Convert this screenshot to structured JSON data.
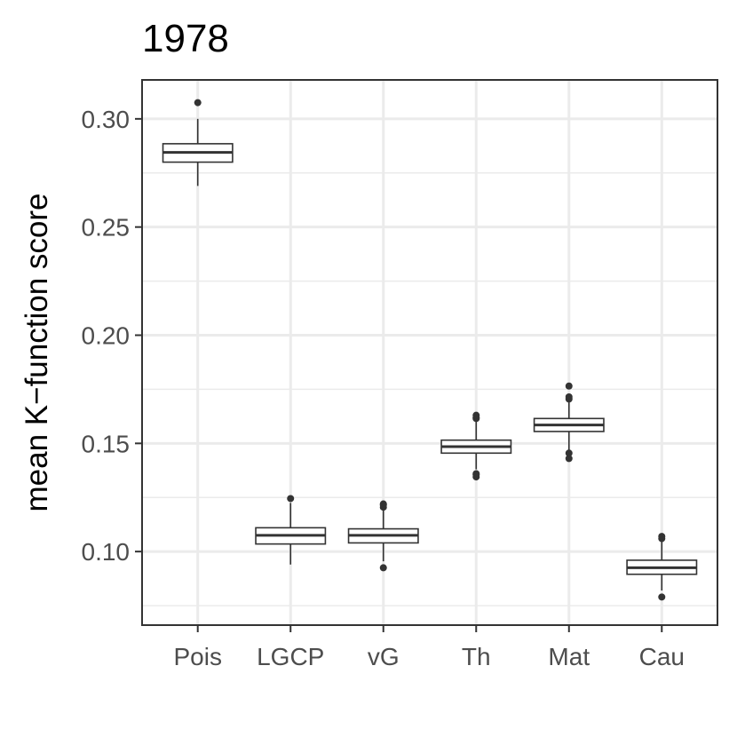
{
  "chart_data": {
    "type": "boxplot",
    "title": "1978",
    "ylabel": "mean K−function score",
    "xlabel": "",
    "ylim": [
      0.066,
      0.318
    ],
    "y_ticks": [
      0.1,
      0.15,
      0.2,
      0.25,
      0.3
    ],
    "y_tick_labels": [
      "0.10",
      "0.15",
      "0.20",
      "0.25",
      "0.30"
    ],
    "grid": true,
    "categories": [
      "Pois",
      "LGCP",
      "vG",
      "Th",
      "Mat",
      "Cau"
    ],
    "boxes": [
      {
        "category": "Pois",
        "whisker_low": 0.269,
        "q1": 0.28,
        "median": 0.2845,
        "q3": 0.2885,
        "whisker_high": 0.3,
        "outliers": [
          0.3075
        ]
      },
      {
        "category": "LGCP",
        "whisker_low": 0.094,
        "q1": 0.1035,
        "median": 0.1075,
        "q3": 0.111,
        "whisker_high": 0.1225,
        "outliers": [
          0.1245
        ]
      },
      {
        "category": "vG",
        "whisker_low": 0.0955,
        "q1": 0.104,
        "median": 0.1075,
        "q3": 0.1105,
        "whisker_high": 0.1195,
        "outliers": [
          0.0925,
          0.1205,
          0.1215,
          0.122
        ]
      },
      {
        "category": "Th",
        "whisker_low": 0.138,
        "q1": 0.1455,
        "median": 0.1485,
        "q3": 0.1515,
        "whisker_high": 0.16,
        "outliers": [
          0.1345,
          0.1355,
          0.136,
          0.1615,
          0.162,
          0.163
        ]
      },
      {
        "category": "Mat",
        "whisker_low": 0.147,
        "q1": 0.1555,
        "median": 0.1585,
        "q3": 0.1615,
        "whisker_high": 0.169,
        "outliers": [
          0.143,
          0.1455,
          0.1705,
          0.1715,
          0.1765
        ]
      },
      {
        "category": "Cau",
        "whisker_low": 0.082,
        "q1": 0.0895,
        "median": 0.0925,
        "q3": 0.096,
        "whisker_high": 0.105,
        "outliers": [
          0.079,
          0.106,
          0.107
        ]
      }
    ]
  }
}
